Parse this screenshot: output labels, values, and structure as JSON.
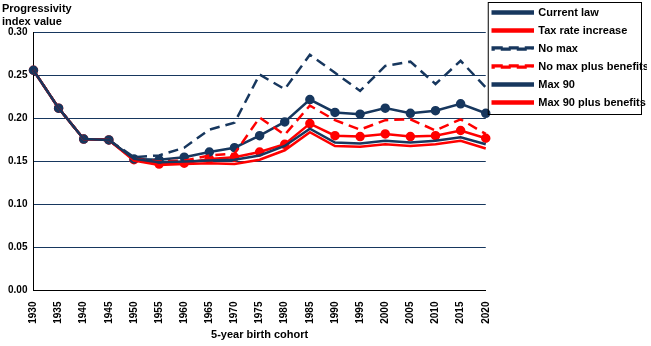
{
  "chart_data": {
    "type": "line",
    "y_label": "Progressivity index value",
    "x_label": "5-year birth cohort",
    "categories": [
      "1930",
      "1935",
      "1940",
      "1945",
      "1950",
      "1955",
      "1960",
      "1965",
      "1970",
      "1975",
      "1980",
      "1985",
      "1990",
      "1995",
      "2000",
      "2005",
      "2010",
      "2015",
      "2020"
    ],
    "series": [
      {
        "name": "Current law",
        "color": "#17375e",
        "line_style": "solid",
        "marker": "none",
        "values": [
          0.256,
          0.212,
          0.176,
          0.175,
          0.153,
          0.149,
          0.15,
          0.151,
          0.152,
          0.157,
          0.168,
          0.188,
          0.172,
          0.171,
          0.174,
          0.172,
          0.174,
          0.178,
          0.17
        ]
      },
      {
        "name": "Tax rate increase",
        "color": "#ff0000",
        "line_style": "solid",
        "marker": "none",
        "values": [
          0.256,
          0.212,
          0.176,
          0.175,
          0.151,
          0.146,
          0.147,
          0.148,
          0.147,
          0.152,
          0.163,
          0.184,
          0.168,
          0.167,
          0.17,
          0.168,
          0.17,
          0.174,
          0.165
        ]
      },
      {
        "name": "No max",
        "color": "#17375e",
        "line_style": "dashed",
        "marker": "none",
        "values": [
          0.256,
          0.212,
          0.176,
          0.175,
          0.155,
          0.157,
          0.166,
          0.187,
          0.195,
          0.251,
          0.234,
          0.274,
          0.253,
          0.232,
          0.261,
          0.266,
          0.24,
          0.267,
          0.236
        ]
      },
      {
        "name": "No max plus benefits",
        "color": "#ff0000",
        "line_style": "dashed",
        "marker": "none",
        "values": [
          0.256,
          0.212,
          0.176,
          0.175,
          0.153,
          0.15,
          0.151,
          0.157,
          0.159,
          0.201,
          0.181,
          0.215,
          0.198,
          0.187,
          0.198,
          0.199,
          0.186,
          0.199,
          0.182
        ]
      },
      {
        "name": "Max 90",
        "color": "#17375e",
        "line_style": "solid",
        "marker": "circle",
        "values": [
          0.256,
          0.212,
          0.176,
          0.175,
          0.153,
          0.152,
          0.155,
          0.161,
          0.166,
          0.18,
          0.196,
          0.222,
          0.207,
          0.205,
          0.212,
          0.206,
          0.209,
          0.217,
          0.206
        ]
      },
      {
        "name": "Max 90 plus benefits",
        "color": "#ff0000",
        "line_style": "solid",
        "marker": "circle",
        "values": [
          0.256,
          0.212,
          0.176,
          0.175,
          0.152,
          0.147,
          0.148,
          0.153,
          0.155,
          0.161,
          0.17,
          0.194,
          0.18,
          0.179,
          0.182,
          0.179,
          0.18,
          0.186,
          0.177
        ]
      }
    ],
    "ylim": [
      0,
      0.3
    ],
    "yticks": [
      {
        "value": 0,
        "label": "0.00"
      },
      {
        "value": 0.05,
        "label": "0.05"
      },
      {
        "value": 0.1,
        "label": "0.10"
      },
      {
        "value": 0.15,
        "label": "0.15"
      },
      {
        "value": 0.2,
        "label": "0.20"
      },
      {
        "value": 0.25,
        "label": "0.25"
      },
      {
        "value": 0.3,
        "label": "0.30"
      }
    ],
    "grid": true,
    "legend": "right"
  }
}
